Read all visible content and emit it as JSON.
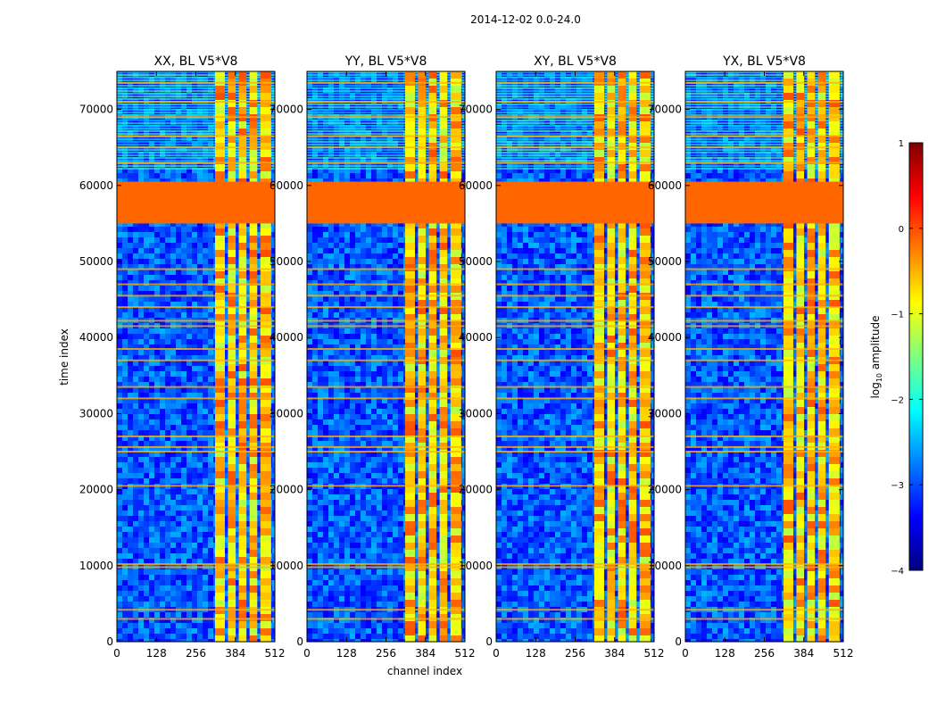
{
  "chart_data": {
    "type": "heatmap",
    "suptitle": "2014-12-02 0.0-24.0",
    "xlabel": "channel index",
    "ylabel": "time index",
    "xlim": [
      0,
      512
    ],
    "ylim": [
      0,
      75000
    ],
    "xticks": [
      "0",
      "128",
      "256",
      "384",
      "512"
    ],
    "yticks": [
      "0",
      "10000",
      "20000",
      "30000",
      "40000",
      "50000",
      "60000",
      "70000"
    ],
    "panels": [
      {
        "title": "XX, BL V5*V8"
      },
      {
        "title": "YY, BL V5*V8"
      },
      {
        "title": "XY, BL V5*V8"
      },
      {
        "title": "YX, BL V5*V8"
      }
    ],
    "colorbar": {
      "label_base": "log",
      "label_sub": "10",
      "label_rest": " amplitude",
      "range": [
        -4,
        1
      ],
      "ticks": [
        "1",
        "0",
        "−1",
        "−2",
        "−3",
        "−4"
      ],
      "colormap": [
        "#00007f",
        "#0000ff",
        "#007fff",
        "#00ffff",
        "#7fff7f",
        "#ffff00",
        "#ff7f00",
        "#ff0000",
        "#7f0000"
      ]
    },
    "flagged_time_ranges": [
      [
        55000,
        60500
      ]
    ],
    "flag_color": "#ff6600"
  }
}
